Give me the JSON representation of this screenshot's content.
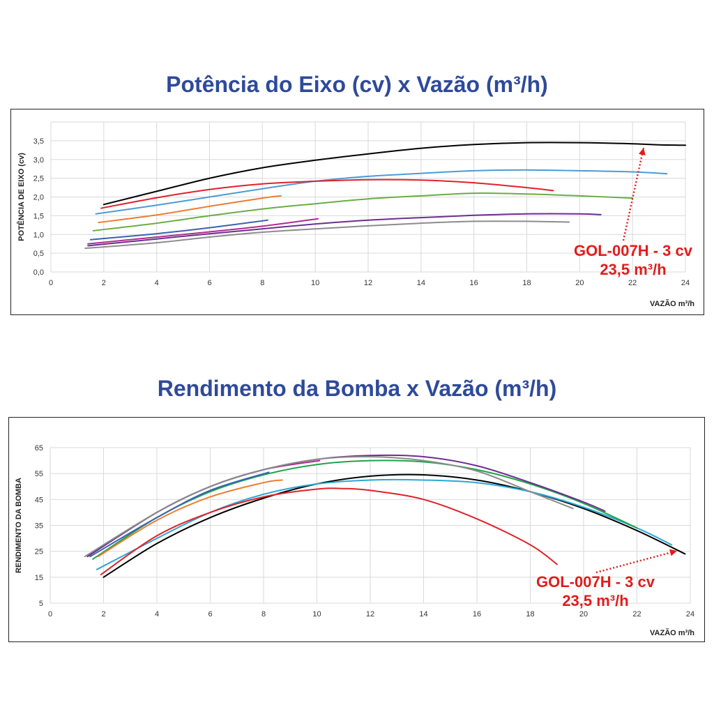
{
  "charts": [
    {
      "title": "Potência do Eixo (cv) x Vazão (m³/h)",
      "chart_data": {
        "type": "line",
        "title": "Potência do Eixo (cv) x Vazão (m³/h)",
        "xlabel": "VAZÃO m³/h",
        "ylabel": "POTÊNCIA DE EIXO (cv)",
        "xlim": [
          0,
          24
        ],
        "ylim": [
          0,
          4
        ],
        "xticks": [
          0,
          2,
          4,
          6,
          8,
          10,
          12,
          14,
          16,
          18,
          20,
          22,
          24
        ],
        "xtick_labels": [
          "0",
          "2",
          "4",
          "6",
          "8",
          "10",
          "12",
          "14",
          "16",
          "18",
          "20",
          "22",
          "24"
        ],
        "yticks": [
          0,
          0.5,
          1.0,
          1.5,
          2.0,
          2.5,
          3.0,
          3.5
        ],
        "ytick_labels": [
          "0,0",
          "0,5",
          "1,0",
          "1,5",
          "2,0",
          "2,5",
          "3,0",
          "3,5"
        ],
        "grid": true,
        "series": [
          {
            "color": "#000000",
            "x": [
              2,
              4,
              6,
              8,
              10,
              12,
              14,
              16,
              18,
              20,
              22,
              23,
              24
            ],
            "y": [
              1.8,
              2.15,
              2.5,
              2.78,
              2.98,
              3.15,
              3.3,
              3.4,
              3.45,
              3.45,
              3.42,
              3.39,
              3.38
            ]
          },
          {
            "color": "#4d9ad6",
            "x": [
              1.7,
              4,
              6,
              8,
              10,
              12,
              14,
              16,
              18,
              20,
              22,
              23.3
            ],
            "y": [
              1.55,
              1.78,
              2.0,
              2.22,
              2.42,
              2.55,
              2.63,
              2.7,
              2.72,
              2.7,
              2.67,
              2.62
            ]
          },
          {
            "color": "#e2202a",
            "x": [
              1.9,
              4,
              6,
              8,
              10,
              12,
              14,
              16,
              18,
              19
            ],
            "y": [
              1.7,
              1.98,
              2.2,
              2.35,
              2.42,
              2.46,
              2.45,
              2.38,
              2.25,
              2.17
            ]
          },
          {
            "color": "#6aad45",
            "x": [
              1.6,
              4,
              6,
              8,
              10,
              12,
              14,
              16,
              18,
              20,
              22
            ],
            "y": [
              1.1,
              1.3,
              1.5,
              1.68,
              1.82,
              1.95,
              2.03,
              2.1,
              2.08,
              2.03,
              1.97
            ]
          },
          {
            "color": "#ed7d31",
            "x": [
              1.8,
              4,
              6,
              8,
              8.7
            ],
            "y": [
              1.32,
              1.52,
              1.75,
              1.97,
              2.03
            ]
          },
          {
            "color": "#3a62b1",
            "x": [
              1.5,
              4,
              6,
              8.2
            ],
            "y": [
              0.86,
              1.02,
              1.18,
              1.38
            ]
          },
          {
            "color": "#b12b8e",
            "x": [
              1.4,
              4,
              6,
              8,
              10.1
            ],
            "y": [
              0.75,
              0.93,
              1.07,
              1.22,
              1.42
            ]
          },
          {
            "color": "#6c2e91",
            "x": [
              1.4,
              4,
              6,
              8,
              10,
              12,
              14,
              16,
              18,
              20,
              20.8
            ],
            "y": [
              0.7,
              0.88,
              1.02,
              1.15,
              1.28,
              1.38,
              1.45,
              1.51,
              1.55,
              1.55,
              1.53
            ]
          },
          {
            "color": "#8c8c8c",
            "x": [
              1.3,
              4,
              6,
              8,
              10,
              12,
              14,
              16,
              18,
              19.6
            ],
            "y": [
              0.63,
              0.78,
              0.93,
              1.06,
              1.15,
              1.23,
              1.3,
              1.35,
              1.35,
              1.33
            ]
          }
        ],
        "annotation": {
          "line1": "GOL-007H - 3 cv",
          "line2": "23,5 m³/h",
          "color": "#e31b1b"
        }
      }
    },
    {
      "title": "Rendimento da Bomba x Vazão (m³/h)",
      "chart_data": {
        "type": "line",
        "title": "Rendimento da Bomba x Vazão (m³/h)",
        "xlabel": "VAZÃO m³/h",
        "ylabel": "RENDIMENTO DA BOMBA",
        "xlim": [
          0,
          24
        ],
        "ylim": [
          5,
          65
        ],
        "xticks": [
          0,
          2,
          4,
          6,
          8,
          10,
          12,
          14,
          16,
          18,
          20,
          22,
          24
        ],
        "xtick_labels": [
          "0",
          "2",
          "4",
          "6",
          "8",
          "10",
          "12",
          "14",
          "16",
          "18",
          "20",
          "22",
          "24"
        ],
        "yticks": [
          5,
          15,
          25,
          35,
          45,
          55,
          65
        ],
        "ytick_labels": [
          "5",
          "15",
          "25",
          "35",
          "45",
          "55",
          "65"
        ],
        "grid": true,
        "series": [
          {
            "color": "#000000",
            "x": [
              2,
              4,
              6,
              8,
              10,
              12,
              14,
              16,
              18,
              20,
              22,
              23.8
            ],
            "y": [
              15,
              28,
              38,
              45.5,
              51,
              54,
              54.5,
              52.5,
              48,
              41.5,
              33,
              24
            ]
          },
          {
            "color": "#29a8d5",
            "x": [
              1.75,
              4,
              6,
              8,
              10,
              12,
              14,
              16,
              18,
              20,
              22,
              23.3
            ],
            "y": [
              18,
              30,
              40,
              47,
              51,
              52.5,
              52.5,
              51.5,
              48,
              42,
              34,
              27.5
            ]
          },
          {
            "color": "#e2202a",
            "x": [
              1.9,
              4,
              6,
              8,
              10,
              11,
              12,
              14,
              16,
              18,
              19
            ],
            "y": [
              16,
              31,
              40,
              46,
              49,
              49.2,
              48.5,
              45,
              37.5,
              27.5,
              20
            ]
          },
          {
            "color": "#1ea54a",
            "x": [
              1.6,
              4,
              6,
              8,
              10,
              12,
              14,
              16,
              18,
              20,
              22
            ],
            "y": [
              22,
              38,
              48,
              54.5,
              58.5,
              60,
              59.5,
              56.5,
              51,
              43.5,
              34
            ]
          },
          {
            "color": "#ed7d31",
            "x": [
              1.8,
              4,
              6,
              8,
              8.7
            ],
            "y": [
              23,
              37,
              46,
              51.5,
              52.5
            ]
          },
          {
            "color": "#3a62b1",
            "x": [
              1.5,
              4,
              6,
              8.2
            ],
            "y": [
              23,
              38,
              48.5,
              55.5
            ]
          },
          {
            "color": "#b12b8e",
            "x": [
              1.4,
              4,
              6,
              8,
              10.1
            ],
            "y": [
              23,
              40,
              50,
              56.5,
              60
            ]
          },
          {
            "color": "#6c2e91",
            "x": [
              1.4,
              4,
              6,
              8,
              10,
              12,
              14,
              16,
              18,
              20,
              20.8
            ],
            "y": [
              23,
              40,
              50,
              56.5,
              60.5,
              62,
              61.5,
              58,
              51.5,
              44,
              40.5
            ]
          },
          {
            "color": "#8c8c8c",
            "x": [
              1.3,
              4,
              6,
              8,
              10,
              12,
              14,
              16,
              18,
              19.6
            ],
            "y": [
              23,
              40,
              50,
              56.5,
              60.5,
              61.5,
              60,
              56,
              48,
              41.5
            ]
          }
        ],
        "annotation": {
          "line1": "GOL-007H - 3 cv",
          "line2": "23,5 m³/h",
          "color": "#e31b1b"
        }
      }
    }
  ]
}
